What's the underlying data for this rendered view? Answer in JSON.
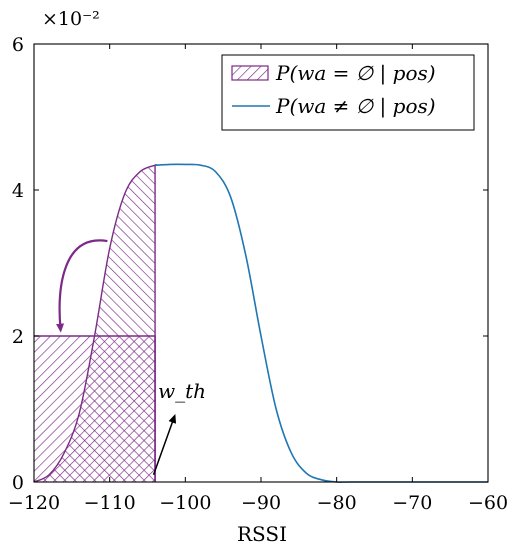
{
  "chart_data": {
    "type": "line",
    "xlabel": "RSSI",
    "y_multiplier_label": "×10⁻²",
    "xlim": [
      -120,
      -60
    ],
    "ylim": [
      0,
      6
    ],
    "x_ticks": [
      -120,
      -110,
      -100,
      -90,
      -80,
      -70,
      -60
    ],
    "x_tick_labels": [
      "−120",
      "−110",
      "−100",
      "−90",
      "−80",
      "−70",
      "−60"
    ],
    "y_ticks": [
      0,
      2,
      4,
      6
    ],
    "y_tick_labels": [
      "0",
      "2",
      "4",
      "6"
    ],
    "grid": false,
    "legend_position": "top-right",
    "threshold": {
      "label": "w_th",
      "x": -104,
      "y_level": 2.0
    },
    "series": [
      {
        "name": "P(wa = ∅ | pos)",
        "style": "hatched-area",
        "color": "#7b2a86",
        "x": [
          -104,
          -103.9
        ],
        "values": [
          4.3,
          0
        ]
      },
      {
        "name": "P(wa ≠ ∅ | pos)",
        "style": "line",
        "color": "#1f77b4",
        "x": [
          -120,
          -118,
          -116,
          -114,
          -112,
          -110,
          -108,
          -106,
          -104,
          -102,
          -100,
          -98,
          -96,
          -94,
          -92,
          -90,
          -88,
          -86,
          -84,
          -82,
          -80,
          -78,
          -70,
          -60
        ],
        "values": [
          0.0,
          0.1,
          0.4,
          0.95,
          2.0,
          3.2,
          3.95,
          4.25,
          4.34,
          4.35,
          4.35,
          4.34,
          4.25,
          3.9,
          3.1,
          2.0,
          1.0,
          0.4,
          0.12,
          0.03,
          0.0,
          0.0,
          0.0,
          0.0
        ]
      }
    ]
  }
}
